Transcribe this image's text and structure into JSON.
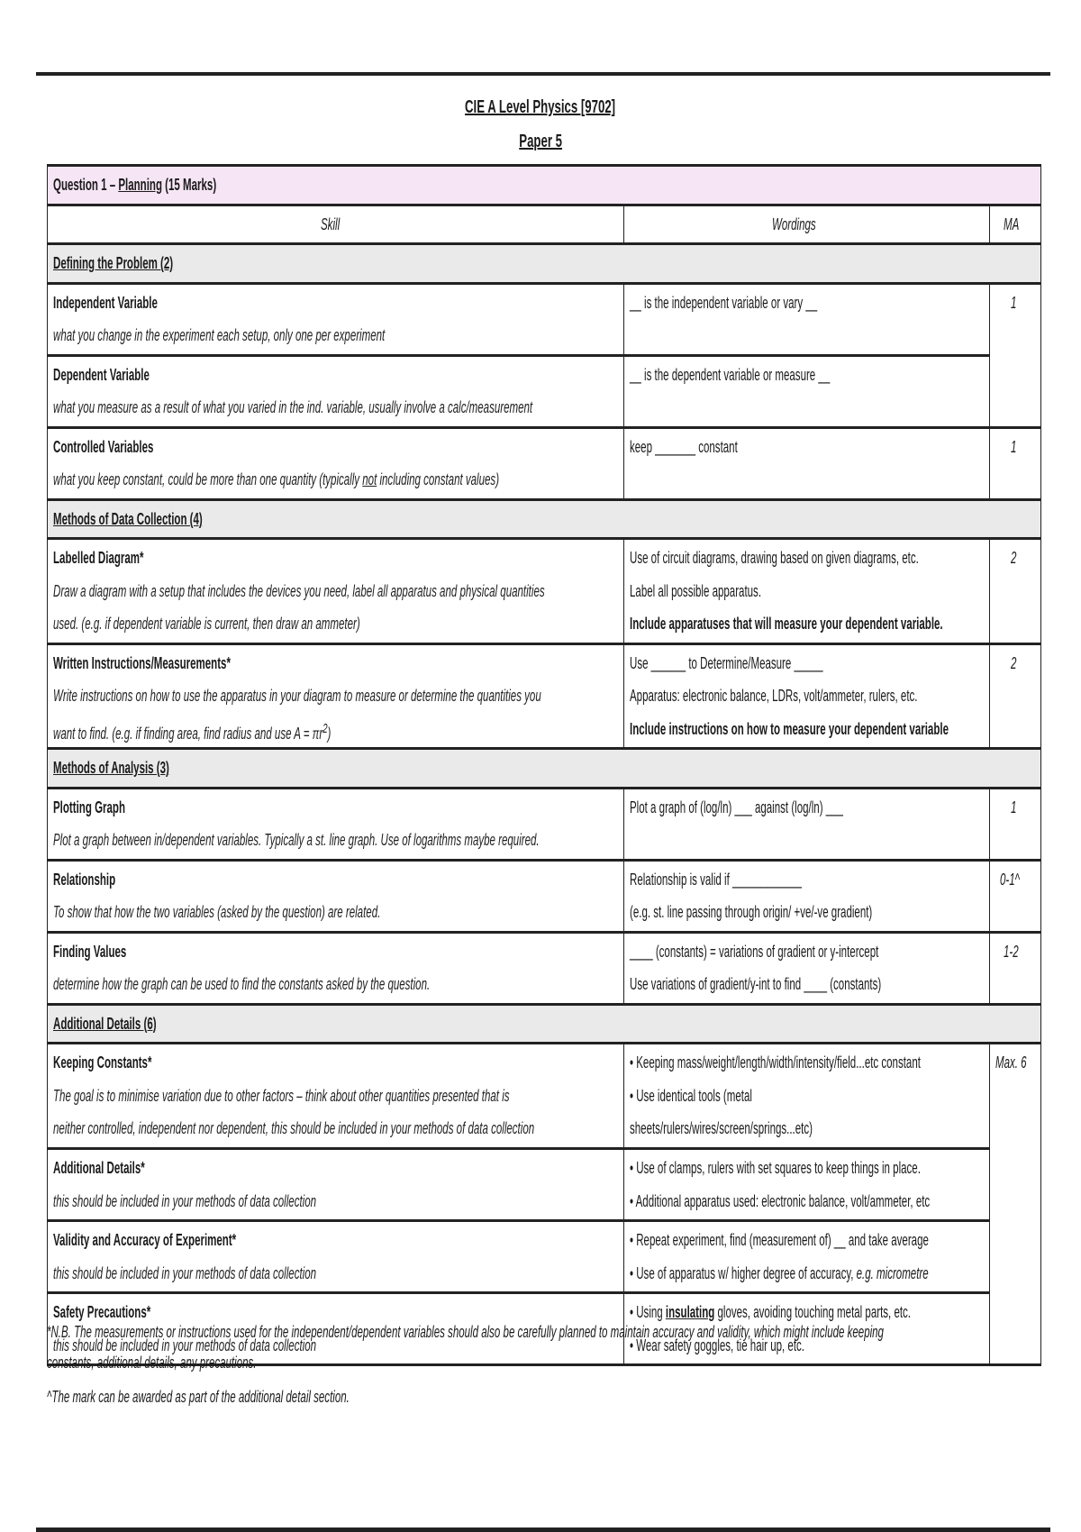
{
  "document": {
    "title": "CIE A Level Physics [9702]",
    "subtitle": "Paper 5",
    "question_header": [
      {
        "t": "Question 1 – "
      },
      {
        "t": "Planning",
        "u": true
      },
      {
        "t": " (15 Marks)"
      }
    ],
    "columns": {
      "skill": "Skill",
      "wordings": "Wordings",
      "ma": "MA"
    },
    "sections": [
      {
        "title": "Defining the Problem (2)",
        "rows": [
          {
            "skill": "Independent Variable",
            "desc": [
              [
                "what you change in the experiment each setup, only one per experiment"
              ]
            ],
            "wordings": [
              [
                "__ is the independent variable or vary __"
              ]
            ],
            "ma": "1"
          },
          {
            "skill": "Dependent Variable",
            "desc": [
              [
                "what you measure as a result of what you varied in the ind. variable, usually involve a calc/measurement"
              ]
            ],
            "wordings": [
              [
                "__ is the dependent variable or measure __"
              ]
            ],
            "ma": null
          },
          {
            "skill": "Controlled Variables",
            "desc": [
              [
                "what you keep constant, could be more than one quantity (typically ",
                {
                  "t": "not",
                  "u": true
                },
                " including constant values)"
              ]
            ],
            "wordings": [
              [
                "keep _______ constant"
              ]
            ],
            "ma": "1"
          }
        ]
      },
      {
        "title": "Methods of Data Collection (4)",
        "rows": [
          {
            "skill": "Labelled Diagram*",
            "desc": [
              [
                "Draw a diagram with a setup that includes the devices you need, label all apparatus and physical quantities"
              ],
              [
                "used. (e.g. if dependent variable is current, then draw an ammeter)"
              ]
            ],
            "wordings": [
              [
                "Use of circuit diagrams, drawing based on given diagrams, etc."
              ],
              [
                "Label all possible apparatus."
              ],
              [
                {
                  "t": "Include apparatuses that will measure your dependent variable.",
                  "b": true
                }
              ]
            ],
            "ma": "2"
          },
          {
            "skill": "Written Instructions/Measurements*",
            "desc": [
              [
                "Write instructions on how to use the apparatus in your diagram to measure or determine the quantities you"
              ],
              [
                "want to find. (e.g. if finding area, find radius and use ",
                {
                  "t": "A = πr",
                  "i": true
                },
                {
                  "t": "2",
                  "sup": true
                },
                ")"
              ]
            ],
            "wordings": [
              [
                "Use ______ to Determine/Measure _____"
              ],
              [
                "Apparatus: electronic balance, LDRs, volt/ammeter, rulers, etc."
              ],
              [
                {
                  "t": "Include instructions on how to measure your dependent variable",
                  "b": true
                }
              ]
            ],
            "ma": "2"
          }
        ]
      },
      {
        "title": "Methods of Analysis (3)",
        "rows": [
          {
            "skill": "Plotting Graph",
            "desc": [
              [
                "Plot a graph between in/dependent variables. Typically a st. line graph. Use of logarithms maybe required."
              ]
            ],
            "wordings": [
              [
                "Plot a graph of (log/ln) ___ against (log/ln) ___"
              ]
            ],
            "ma": "1"
          },
          {
            "skill": "Relationship",
            "desc": [
              [
                "To show that how the two variables (asked by the question) are related."
              ]
            ],
            "wordings": [
              [
                "Relationship is valid if ____________"
              ],
              [
                "(e.g. st. line passing through origin/ +ve/-ve gradient)"
              ]
            ],
            "ma": "0-1^"
          },
          {
            "skill": "Finding Values",
            "desc": [
              [
                "determine how the graph can be used to find the constants asked by the question."
              ]
            ],
            "wordings": [
              [
                "____ (constants) = variations of gradient or y-intercept"
              ],
              [
                "Use variations of gradient/y-int to find ____ (constants)"
              ]
            ],
            "ma": "1-2"
          }
        ]
      },
      {
        "title": "Additional Details (6)",
        "rows": [
          {
            "skill": "Keeping Constants*",
            "desc": [
              [
                "The goal is to minimise variation due to other factors – think about other quantities presented that is"
              ],
              [
                "neither controlled, independent nor dependent, this should be included in your methods of data collection"
              ]
            ],
            "wordings": [
              [
                "• Keeping mass/weight/length/width/intensity/field...etc constant"
              ],
              [
                "• Use identical tools (metal"
              ],
              [
                "   sheets/rulers/wires/screen/springs...etc)"
              ]
            ],
            "ma": "Max. 6"
          },
          {
            "skill": "Additional Details*",
            "desc": [
              [
                "this should be included in your methods of data collection"
              ]
            ],
            "wordings": [
              [
                "• Use of clamps, rulers with set squares to keep things in place."
              ],
              [
                "• Additional apparatus used: electronic balance, volt/ammeter, etc"
              ]
            ],
            "ma": null
          },
          {
            "skill": "Validity and Accuracy of Experiment*",
            "desc": [
              [
                "this should be included in your methods of data collection"
              ]
            ],
            "wordings": [
              [
                "• Repeat experiment, find (measurement of) __ and take average"
              ],
              [
                "• Use of apparatus w/ higher degree of accuracy, ",
                {
                  "t": "e.g. micrometre",
                  "i": true
                }
              ]
            ],
            "ma": null
          },
          {
            "skill": "Safety Precautions*",
            "desc": [
              [
                "this should be included in your methods of data collection"
              ]
            ],
            "wordings": [
              [
                "• Using ",
                {
                  "t": "insulating",
                  "u": true,
                  "b": true
                },
                " gloves, avoiding touching metal parts, etc."
              ],
              [
                "• Wear safety goggles, tie hair up, etc."
              ]
            ],
            "ma": null
          }
        ]
      }
    ],
    "notes": [
      "*N.B. The measurements or instructions used for the independent/dependent variables should also be carefully planned to maintain accuracy and validity, which might include keeping",
      "constants, additional details, any precautions.",
      "^The mark can be awarded as part of the additional detail section."
    ],
    "colors": {
      "question_bg": "#f6e6f5",
      "section_bg": "#eaeaea",
      "border": "#222222"
    }
  }
}
